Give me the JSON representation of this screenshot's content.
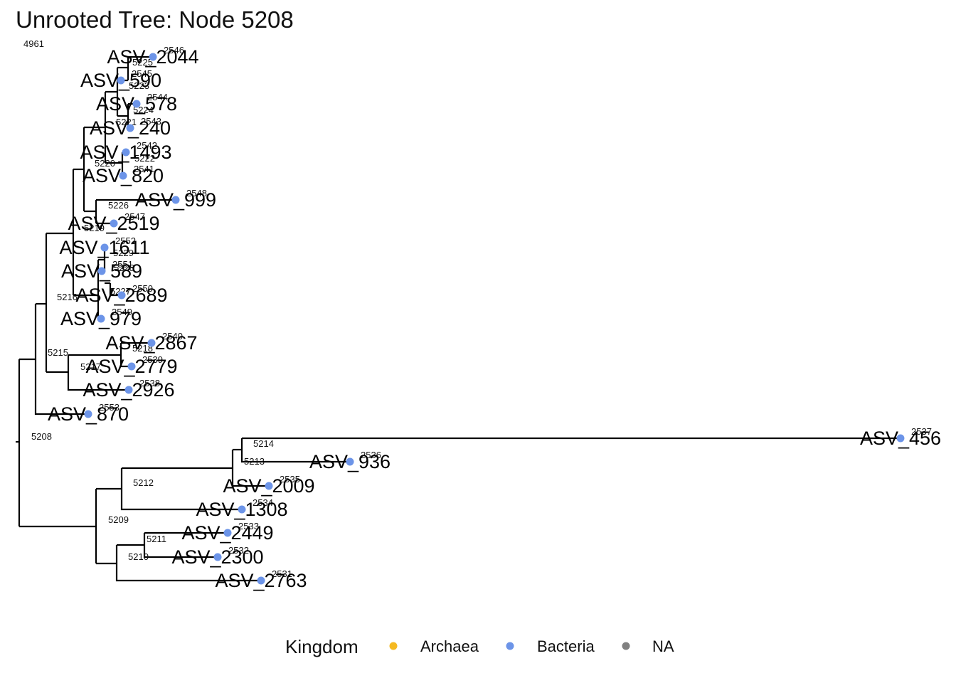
{
  "title": "Unrooted Tree: Node 5208",
  "root_stub_label": "4961",
  "root_label": "5208",
  "colors": {
    "Archaea": "#F5B921",
    "Bacteria": "#6C94E8",
    "NA": "#808080"
  },
  "legend": {
    "title": "Kingdom",
    "items": [
      {
        "label": "Archaea",
        "color": "#F5B921"
      },
      {
        "label": "Bacteria",
        "color": "#6C94E8"
      },
      {
        "label": "NA",
        "color": "#808080"
      }
    ]
  },
  "tips": [
    {
      "name": "ASV_2044",
      "num": "2546",
      "kingdom": "Bacteria"
    },
    {
      "name": "ASV_590",
      "num": "2545",
      "kingdom": "Bacteria"
    },
    {
      "name": "ASV_578",
      "num": "2544",
      "kingdom": "Bacteria"
    },
    {
      "name": "ASV_240",
      "num": "2543",
      "kingdom": "Bacteria"
    },
    {
      "name": "ASV_1493",
      "num": "2542",
      "kingdom": "Bacteria"
    },
    {
      "name": "ASV_820",
      "num": "2541",
      "kingdom": "Bacteria"
    },
    {
      "name": "ASV_999",
      "num": "2548",
      "kingdom": "Bacteria"
    },
    {
      "name": "ASV_2519",
      "num": "2547",
      "kingdom": "Bacteria"
    },
    {
      "name": "ASV_1611",
      "num": "2552",
      "kingdom": "Bacteria"
    },
    {
      "name": "ASV_589",
      "num": "2551",
      "kingdom": "Bacteria"
    },
    {
      "name": "ASV_2689",
      "num": "2550",
      "kingdom": "Bacteria"
    },
    {
      "name": "ASV_979",
      "num": "2549",
      "kingdom": "Bacteria"
    },
    {
      "name": "ASV_2867",
      "num": "2540",
      "kingdom": "Bacteria"
    },
    {
      "name": "ASV_2779",
      "num": "2539",
      "kingdom": "Bacteria"
    },
    {
      "name": "ASV_2926",
      "num": "2538",
      "kingdom": "Bacteria"
    },
    {
      "name": "ASV_870",
      "num": "2553",
      "kingdom": "Bacteria"
    },
    {
      "name": "ASV_456",
      "num": "2537",
      "kingdom": "Bacteria"
    },
    {
      "name": "ASV_936",
      "num": "2536",
      "kingdom": "Bacteria"
    },
    {
      "name": "ASV_2009",
      "num": "2535",
      "kingdom": "Bacteria"
    },
    {
      "name": "ASV_1308",
      "num": "2534",
      "kingdom": "Bacteria"
    },
    {
      "name": "ASV_2449",
      "num": "2533",
      "kingdom": "Bacteria"
    },
    {
      "name": "ASV_2300",
      "num": "2532",
      "kingdom": "Bacteria"
    },
    {
      "name": "ASV_2763",
      "num": "2531",
      "kingdom": "Bacteria"
    }
  ],
  "internal_nodes": [
    {
      "label": "5225"
    },
    {
      "label": "5223"
    },
    {
      "label": "5224"
    },
    {
      "label": "5221"
    },
    {
      "label": "5222"
    },
    {
      "label": "5220"
    },
    {
      "label": "5226"
    },
    {
      "label": "5219"
    },
    {
      "label": "5229"
    },
    {
      "label": "5228"
    },
    {
      "label": "5227"
    },
    {
      "label": "5216"
    },
    {
      "label": "5215"
    },
    {
      "label": "5218"
    },
    {
      "label": "5217"
    },
    {
      "label": "5214"
    },
    {
      "label": "5213"
    },
    {
      "label": "5212"
    },
    {
      "label": "5209"
    },
    {
      "label": "5211"
    },
    {
      "label": "5210"
    }
  ]
}
